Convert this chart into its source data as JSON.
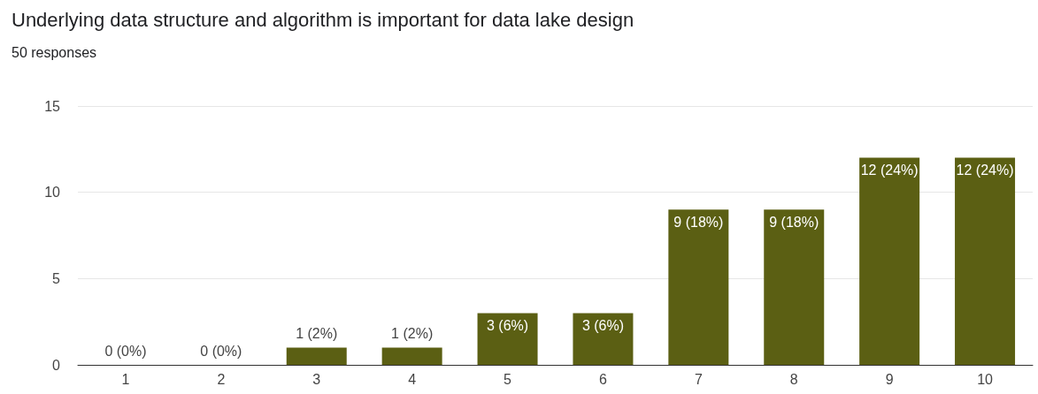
{
  "chart_data": {
    "type": "bar",
    "title": "Underlying data structure and algorithm is important for data lake design",
    "subtitle": "50 responses",
    "categories": [
      "1",
      "2",
      "3",
      "4",
      "5",
      "6",
      "7",
      "8",
      "9",
      "10"
    ],
    "values": [
      0,
      0,
      1,
      1,
      3,
      3,
      9,
      9,
      12,
      12
    ],
    "value_labels": [
      "0 (0%)",
      "0 (0%)",
      "1 (2%)",
      "1 (2%)",
      "3 (6%)",
      "3 (6%)",
      "9 (18%)",
      "9 (18%)",
      "12 (24%)",
      "12 (24%)"
    ],
    "color": "#5b5f13",
    "ylim": [
      0,
      15
    ],
    "yticks": [
      0,
      5,
      10,
      15
    ],
    "grid": "y"
  }
}
